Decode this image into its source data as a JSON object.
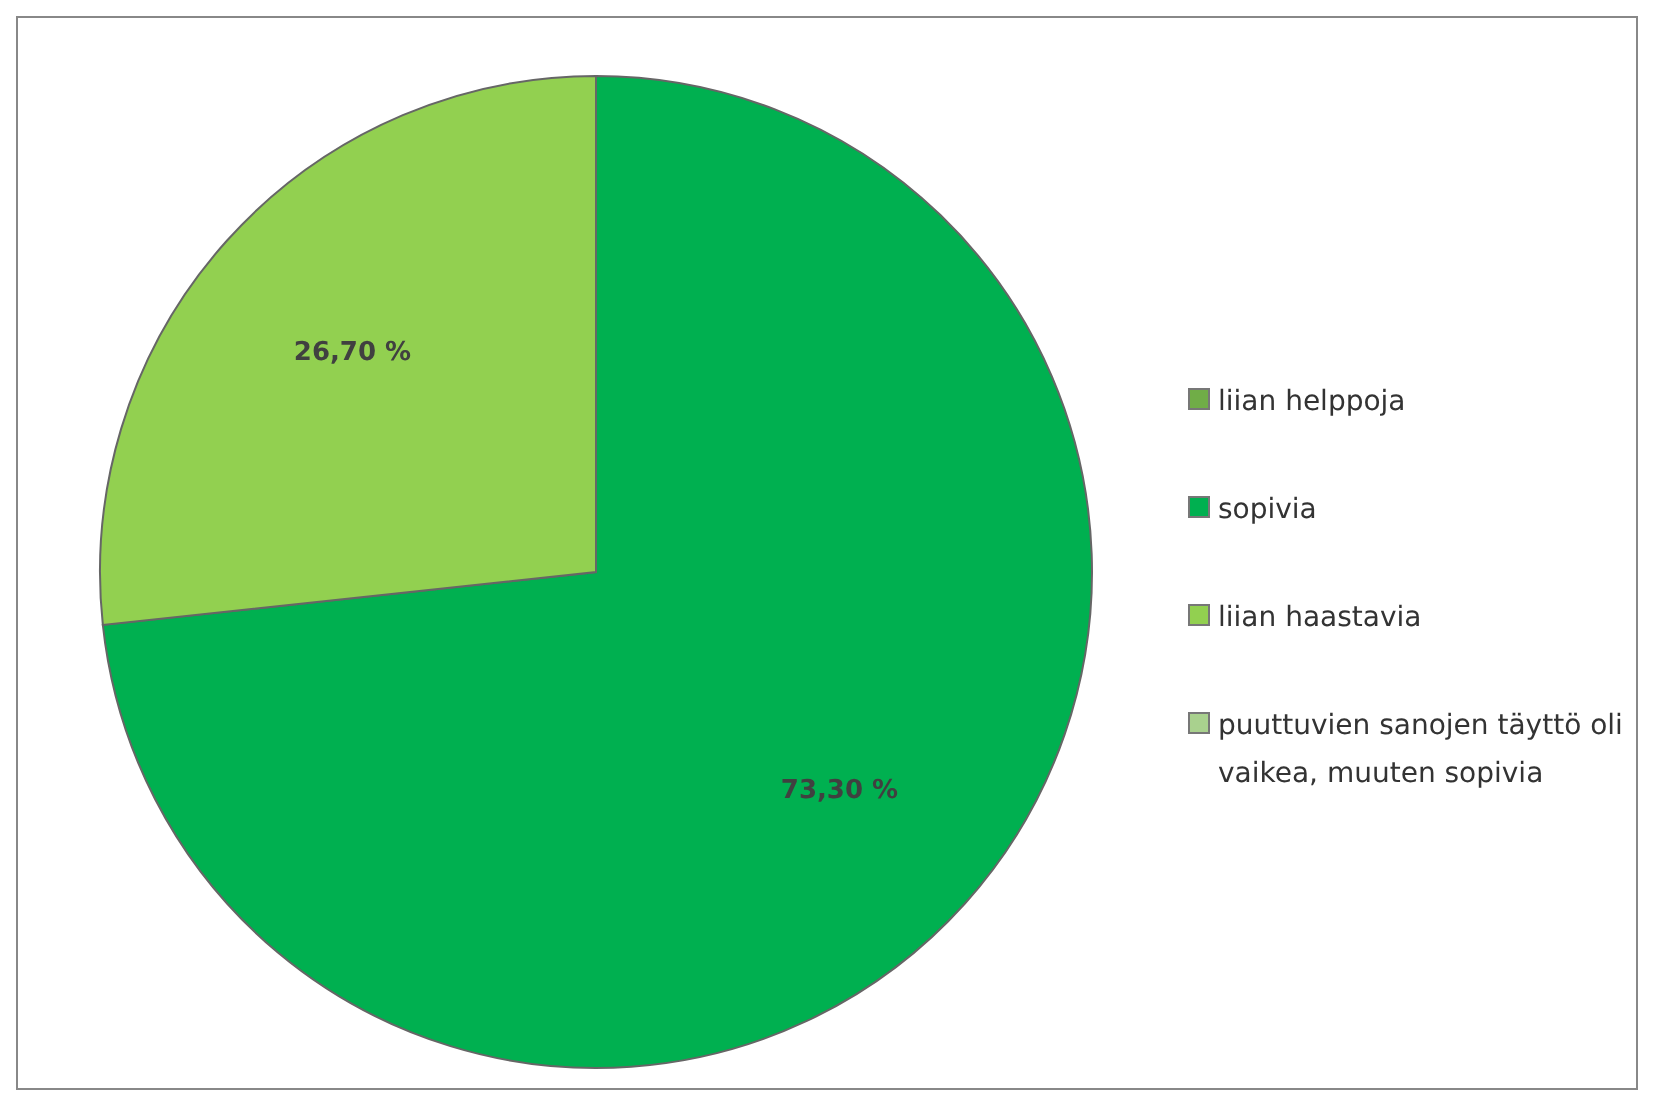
{
  "chart_data": {
    "type": "pie",
    "categories": [
      "liian helppoja",
      "sopivia",
      "liian haastavia",
      "puuttuvien sanojen täyttö oli vaikea, muuten sopivia"
    ],
    "values": [
      0,
      73.3,
      26.7,
      0
    ],
    "colors": [
      "#70ad47",
      "#00b050",
      "#92d050",
      "#a9d18e"
    ],
    "value_labels": [
      null,
      "73,30 %",
      "26,70 %",
      null
    ],
    "legend": "right"
  }
}
